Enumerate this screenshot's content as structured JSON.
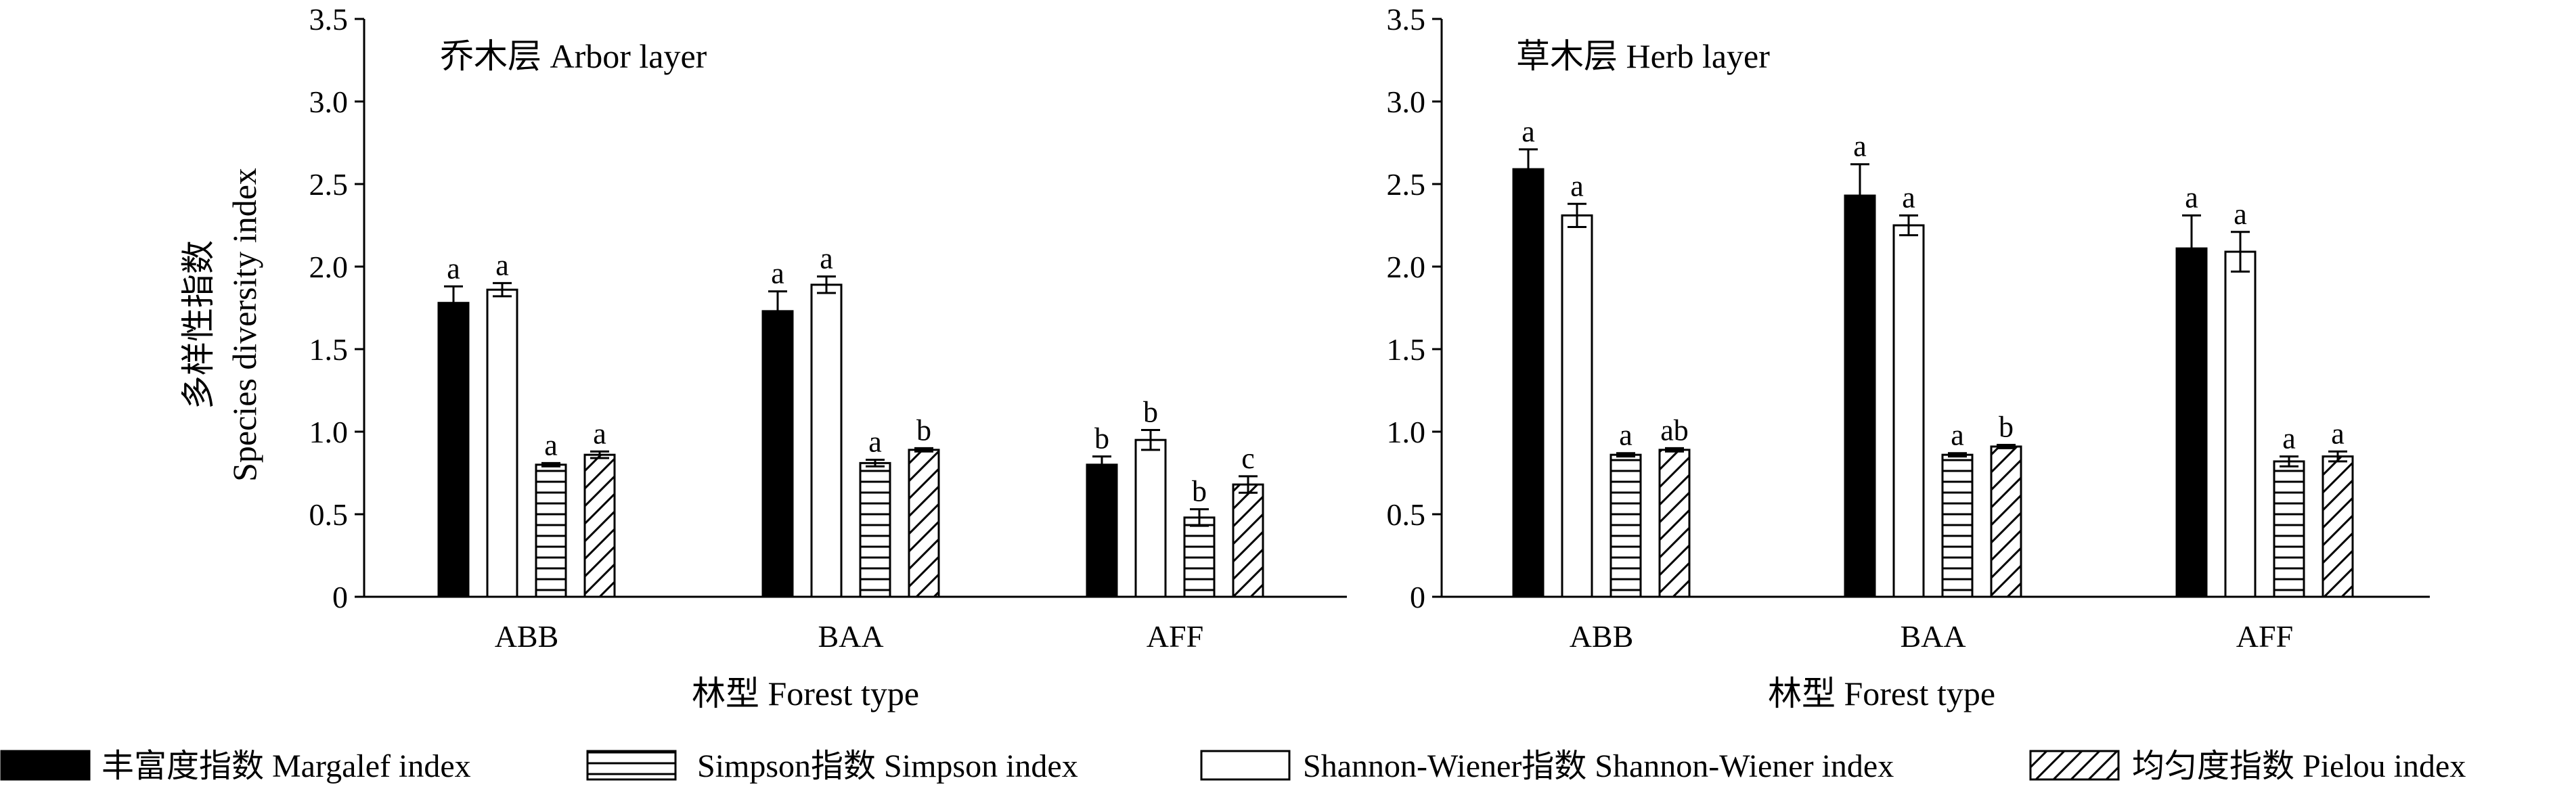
{
  "chart_data": [
    {
      "type": "bar",
      "title": "乔木层  Arbor layer",
      "xlabel": "林型  Forest type",
      "ylabel_line1": "多样性指数",
      "ylabel_line2": "Species diversity index",
      "ylim": [
        0,
        3.5
      ],
      "yticks": [
        "0",
        "0.5",
        "1.0",
        "1.5",
        "2.0",
        "2.5",
        "3.0",
        "3.5"
      ],
      "categories": [
        "ABB",
        "BAA",
        "AFF"
      ],
      "series": [
        {
          "key": "margalef",
          "values": [
            1.78,
            1.73,
            0.8
          ],
          "errors": [
            0.1,
            0.12,
            0.05
          ],
          "labels": [
            "a",
            "a",
            "b"
          ]
        },
        {
          "key": "shannon",
          "values": [
            1.86,
            1.89,
            0.95
          ],
          "errors": [
            0.04,
            0.05,
            0.06
          ],
          "labels": [
            "a",
            "a",
            "b"
          ]
        },
        {
          "key": "simpson",
          "values": [
            0.8,
            0.81,
            0.48
          ],
          "errors": [
            0.01,
            0.02,
            0.05
          ],
          "labels": [
            "a",
            "a",
            "b"
          ]
        },
        {
          "key": "pielou",
          "values": [
            0.86,
            0.89,
            0.68
          ],
          "errors": [
            0.02,
            0.01,
            0.05
          ],
          "labels": [
            "a",
            "b",
            "c"
          ]
        }
      ]
    },
    {
      "type": "bar",
      "title": "草木层  Herb layer",
      "xlabel": "林型  Forest type",
      "ylim": [
        0,
        3.5
      ],
      "yticks": [
        "0",
        "0.5",
        "1.0",
        "1.5",
        "2.0",
        "2.5",
        "3.0",
        "3.5"
      ],
      "categories": [
        "ABB",
        "BAA",
        "AFF"
      ],
      "series": [
        {
          "key": "margalef",
          "values": [
            2.59,
            2.43,
            2.11
          ],
          "errors": [
            0.12,
            0.19,
            0.2
          ],
          "labels": [
            "a",
            "a",
            "a"
          ]
        },
        {
          "key": "shannon",
          "values": [
            2.31,
            2.25,
            2.09
          ],
          "errors": [
            0.07,
            0.06,
            0.12
          ],
          "labels": [
            "a",
            "a",
            "a"
          ]
        },
        {
          "key": "simpson",
          "values": [
            0.86,
            0.86,
            0.82
          ],
          "errors": [
            0.01,
            0.01,
            0.03
          ],
          "labels": [
            "a",
            "a",
            "a"
          ]
        },
        {
          "key": "pielou",
          "values": [
            0.89,
            0.91,
            0.85
          ],
          "errors": [
            0.01,
            0.01,
            0.03
          ],
          "labels": [
            "ab",
            "b",
            "a"
          ]
        }
      ]
    }
  ],
  "legend": {
    "placement": "bottom",
    "items": [
      {
        "key": "margalef",
        "label": "丰富度指数  Margalef index"
      },
      {
        "key": "simpson",
        "label": "Simpson指数  Simpson index"
      },
      {
        "key": "shannon",
        "label": "Shannon-Wiener指数  Shannon-Wiener index"
      },
      {
        "key": "pielou",
        "label": "均匀度指数  Pielou index"
      }
    ]
  },
  "styles": {
    "margalef": {
      "fill": "solid",
      "color": "#000000"
    },
    "shannon": {
      "fill": "empty",
      "color": "#ffffff"
    },
    "simpson": {
      "fill": "horizontal-lines",
      "color": "#ffffff"
    },
    "pielou": {
      "fill": "diagonal-lines",
      "color": "#ffffff"
    }
  }
}
